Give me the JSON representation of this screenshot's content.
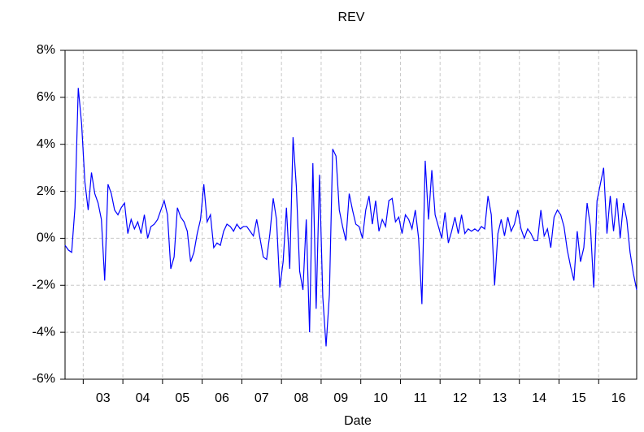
{
  "chart_data": {
    "type": "line",
    "title": "REV",
    "x_label": "Date",
    "series": [
      {
        "name": "REV",
        "color": "#0000ff",
        "values": [
          -0.3,
          -0.5,
          -0.6,
          1.3,
          6.4,
          4.9,
          2.4,
          1.2,
          2.8,
          1.9,
          1.5,
          0.8,
          -1.8,
          2.3,
          1.9,
          1.2,
          1.0,
          1.3,
          1.5,
          0.2,
          0.8,
          0.4,
          0.7,
          0.2,
          1.0,
          0.0,
          0.5,
          0.6,
          0.8,
          1.2,
          1.6,
          1.0,
          -1.3,
          -0.8,
          1.3,
          0.9,
          0.7,
          0.3,
          -1.0,
          -0.6,
          0.2,
          0.8,
          2.3,
          0.7,
          1.0,
          -0.4,
          -0.2,
          -0.3,
          0.3,
          0.6,
          0.5,
          0.3,
          0.6,
          0.4,
          0.5,
          0.5,
          0.3,
          0.1,
          0.8,
          0.0,
          -0.8,
          -0.9,
          0.2,
          1.7,
          0.8,
          -2.1,
          -1.0,
          1.3,
          -1.3,
          4.3,
          2.2,
          -1.4,
          -2.2,
          0.8,
          -4.0,
          3.2,
          -3.0,
          2.7,
          -2.5,
          -4.6,
          -2.4,
          3.8,
          3.5,
          1.2,
          0.5,
          -0.1,
          1.9,
          1.2,
          0.6,
          0.5,
          0.0,
          1.2,
          1.8,
          0.6,
          1.6,
          0.3,
          0.8,
          0.5,
          1.6,
          1.7,
          0.7,
          0.9,
          0.2,
          1.0,
          0.8,
          0.4,
          1.2,
          0.0,
          -2.8,
          3.3,
          0.8,
          2.9,
          1.0,
          0.5,
          0.0,
          1.1,
          -0.2,
          0.3,
          0.9,
          0.2,
          1.0,
          0.2,
          0.4,
          0.3,
          0.4,
          0.3,
          0.5,
          0.4,
          1.8,
          1.0,
          -2.0,
          0.2,
          0.8,
          0.1,
          0.9,
          0.3,
          0.6,
          1.2,
          0.4,
          0.0,
          0.4,
          0.2,
          -0.1,
          -0.1,
          1.2,
          0.1,
          0.4,
          -0.4,
          0.9,
          1.2,
          1.0,
          0.5,
          -0.5,
          -1.2,
          -1.8,
          0.3,
          -1.0,
          -0.4,
          1.5,
          0.5,
          -2.1,
          1.6,
          2.3,
          3.0,
          0.2,
          1.8,
          0.3,
          1.7,
          0.0,
          1.5,
          0.8,
          -0.6,
          -1.5,
          -2.2
        ]
      }
    ],
    "xlim": [
      0,
      173
    ],
    "xticks": [
      {
        "value": 11.5,
        "label": "03"
      },
      {
        "value": 23.5,
        "label": "04"
      },
      {
        "value": 35.5,
        "label": "05"
      },
      {
        "value": 47.5,
        "label": "06"
      },
      {
        "value": 59.5,
        "label": "07"
      },
      {
        "value": 71.5,
        "label": "08"
      },
      {
        "value": 83.5,
        "label": "09"
      },
      {
        "value": 95.5,
        "label": "10"
      },
      {
        "value": 107.5,
        "label": "11"
      },
      {
        "value": 119.5,
        "label": "12"
      },
      {
        "value": 131.5,
        "label": "13"
      },
      {
        "value": 143.5,
        "label": "14"
      },
      {
        "value": 155.5,
        "label": "15"
      },
      {
        "value": 167.5,
        "label": "16"
      }
    ],
    "ylim": [
      -6,
      8
    ],
    "yticks": [
      {
        "value": -6,
        "label": "-6%"
      },
      {
        "value": -4,
        "label": "-4%"
      },
      {
        "value": -2,
        "label": "-2%"
      },
      {
        "value": 0,
        "label": "0%"
      },
      {
        "value": 2,
        "label": "2%"
      },
      {
        "value": 4,
        "label": "4%"
      },
      {
        "value": 6,
        "label": "6%"
      },
      {
        "value": 8,
        "label": "8%"
      }
    ],
    "grid": true
  }
}
